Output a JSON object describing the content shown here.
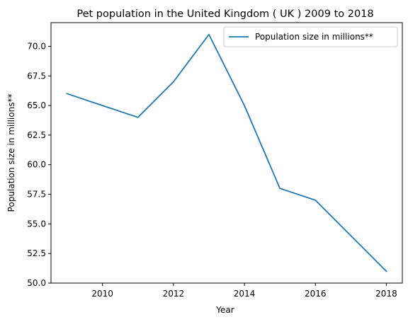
{
  "chart_data": {
    "type": "line",
    "title": "Pet population in the United Kingdom ( UK ) 2009 to 2018",
    "xlabel": "Year",
    "ylabel": "Population size in millions**",
    "x": [
      2009,
      2010,
      2011,
      2012,
      2013,
      2014,
      2015,
      2016,
      2017,
      2018
    ],
    "series": [
      {
        "name": "Population size in millions**",
        "values": [
          66,
          65,
          64,
          67,
          71,
          65,
          58,
          57,
          54,
          51
        ],
        "color": "#1f77b4"
      }
    ],
    "xlim": [
      2008.55,
      2018.45
    ],
    "ylim": [
      50,
      72
    ],
    "xticks": [
      2010,
      2012,
      2014,
      2016,
      2018
    ],
    "xtick_labels": [
      "2010",
      "2012",
      "2014",
      "2016",
      "2018"
    ],
    "yticks": [
      50,
      52.5,
      55,
      57.5,
      60,
      62.5,
      65,
      67.5,
      70
    ],
    "ytick_labels": [
      "50.0",
      "52.5",
      "55.0",
      "57.5",
      "60.0",
      "62.5",
      "65.0",
      "67.5",
      "70.0"
    ],
    "grid": false,
    "legend_position": "top-right"
  }
}
